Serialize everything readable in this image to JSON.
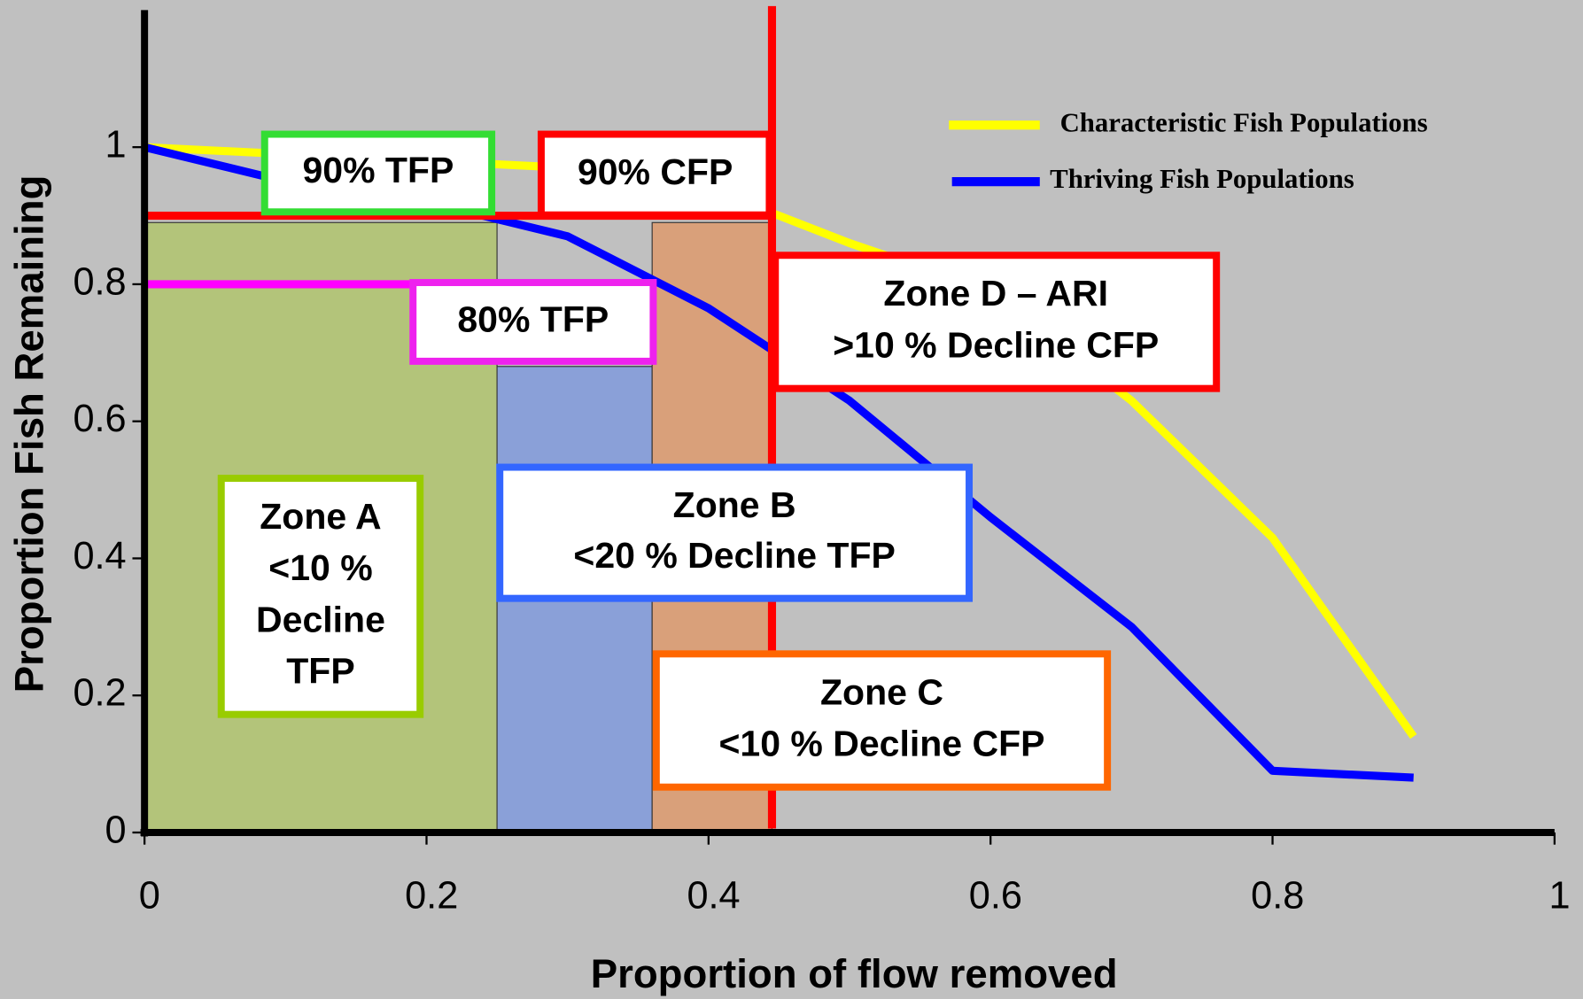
{
  "chart_data": {
    "type": "line",
    "x_label": "Proportion of flow removed",
    "y_label": "Proportion Fish Remaining",
    "x": [
      0,
      0.1,
      0.2,
      0.3,
      0.4,
      0.5,
      0.6,
      0.7,
      0.8,
      0.9
    ],
    "series": [
      {
        "name": "Characteristic Fish Populations",
        "color": "#ffff00",
        "values": [
          1,
          0.99,
          0.98,
          0.97,
          0.94,
          0.86,
          0.79,
          0.63,
          0.43,
          0.14
        ]
      },
      {
        "name": "Thriving Fish Populations",
        "color": "#0000ff",
        "values": [
          1,
          0.95,
          0.92,
          0.87,
          0.765,
          0.63,
          0.46,
          0.3,
          0.09,
          0.08
        ]
      }
    ],
    "xlim": [
      0,
      1
    ],
    "ylim": [
      0,
      1.2
    ],
    "xticks": [
      0,
      0.2,
      0.4,
      0.6,
      0.8,
      1
    ],
    "yticks": [
      0,
      0.2,
      0.4,
      0.6,
      0.8,
      1
    ],
    "legend": "upper right",
    "zones": [
      {
        "x": [
          0,
          0.25
        ],
        "top": 0.89,
        "color": "#b3c47a"
      },
      {
        "x": [
          0.25,
          0.36
        ],
        "top": 0.68,
        "color": "#8aa0d8"
      },
      {
        "x": [
          0.36,
          0.445
        ],
        "top": 0.89,
        "color": "#d9a07a"
      }
    ],
    "reference_lines": [
      {
        "orientation": "h",
        "value": 0.9,
        "from": 0,
        "to": 0.445,
        "color": "#ff0000"
      },
      {
        "orientation": "h",
        "value": 0.8,
        "from": 0,
        "to": 0.36,
        "color": "#ff00ff"
      },
      {
        "orientation": "v",
        "value": 0.445,
        "from": 0,
        "to": 1.2,
        "color": "#ff0000"
      }
    ],
    "annotations": [
      {
        "lines": [
          "90% TFP"
        ],
        "color": "#33dd33"
      },
      {
        "lines": [
          "90% CFP"
        ],
        "color": "#ff0000"
      },
      {
        "lines": [
          "80% TFP"
        ],
        "color": "#ee22ee"
      },
      {
        "lines": [
          "Zone D – ARI",
          ">10 % Decline CFP"
        ],
        "color": "#ff0000"
      },
      {
        "lines": [
          "Zone B",
          "<20 % Decline TFP"
        ],
        "color": "#3366ff"
      },
      {
        "lines": [
          "Zone A",
          "<10 %",
          "Decline",
          "TFP"
        ],
        "color": "#99cc00"
      },
      {
        "lines": [
          "Zone C",
          "<10 % Decline CFP"
        ],
        "color": "#ff6600"
      }
    ]
  }
}
